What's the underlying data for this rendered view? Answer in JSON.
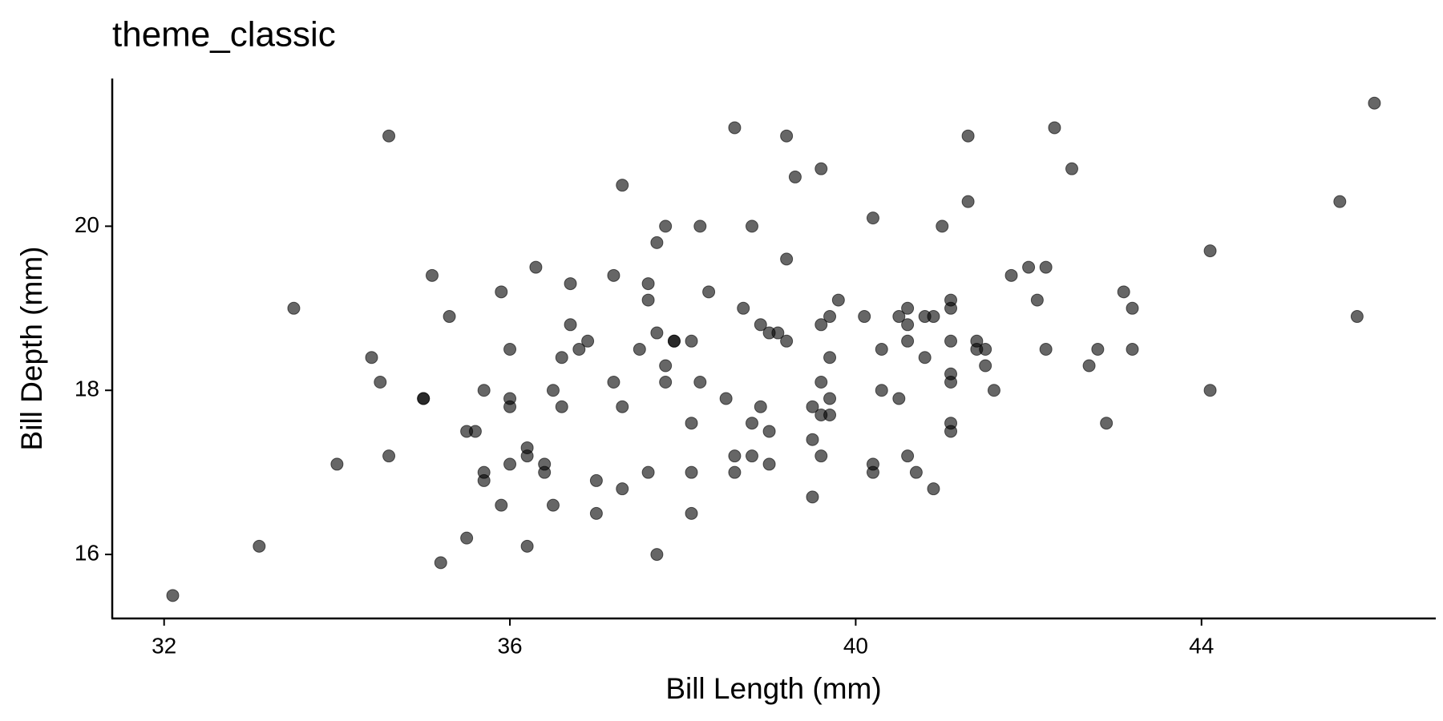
{
  "chart_data": {
    "type": "scatter",
    "title": "theme_classic",
    "x_label": "Bill Length (mm)",
    "y_label": "Bill Depth (mm)",
    "color": "#000000",
    "opacity": 0.6,
    "x": [
      32.1,
      33.1,
      33.5,
      34.0,
      34.4,
      34.5,
      34.6,
      34.6,
      35.0,
      35.0,
      35.1,
      35.2,
      35.3,
      35.5,
      35.5,
      35.6,
      35.7,
      35.7,
      35.7,
      35.9,
      35.9,
      36.0,
      36.0,
      36.0,
      36.0,
      36.2,
      36.2,
      36.2,
      36.3,
      36.4,
      36.4,
      36.5,
      36.5,
      36.6,
      36.6,
      36.7,
      36.7,
      36.8,
      36.9,
      37.0,
      37.0,
      37.2,
      37.2,
      37.3,
      37.3,
      37.3,
      37.5,
      37.6,
      37.6,
      37.6,
      37.7,
      37.7,
      37.7,
      37.8,
      37.8,
      37.8,
      37.9,
      37.9,
      38.1,
      38.1,
      38.1,
      38.1,
      38.2,
      38.2,
      38.3,
      38.5,
      38.6,
      38.6,
      38.6,
      38.7,
      38.8,
      38.8,
      38.8,
      38.9,
      38.9,
      39.0,
      39.0,
      39.0,
      39.1,
      39.2,
      39.2,
      39.2,
      39.3,
      39.5,
      39.5,
      39.5,
      39.6,
      39.6,
      39.6,
      39.6,
      39.6,
      39.7,
      39.7,
      39.7,
      39.7,
      39.8,
      40.1,
      40.2,
      40.2,
      40.2,
      40.3,
      40.3,
      40.5,
      40.5,
      40.6,
      40.6,
      40.6,
      40.6,
      40.7,
      40.8,
      40.8,
      40.9,
      40.9,
      41.0,
      41.1,
      41.1,
      41.1,
      41.1,
      41.1,
      41.1,
      41.1,
      41.3,
      41.3,
      41.4,
      41.4,
      41.5,
      41.5,
      41.6,
      41.8,
      42.0,
      42.1,
      42.2,
      42.2,
      42.3,
      42.5,
      42.7,
      42.8,
      42.9,
      43.1,
      43.2,
      43.2,
      44.1,
      44.1,
      45.6,
      45.8,
      46.0
    ],
    "values": [
      15.5,
      16.1,
      19.0,
      17.1,
      18.4,
      18.1,
      21.1,
      17.2,
      17.9,
      17.9,
      19.4,
      15.9,
      18.9,
      17.5,
      16.2,
      17.5,
      18.0,
      17.0,
      16.9,
      19.2,
      16.6,
      18.5,
      17.9,
      17.8,
      17.1,
      17.3,
      17.2,
      16.1,
      19.5,
      17.1,
      17.0,
      18.0,
      16.6,
      18.4,
      17.8,
      19.3,
      18.8,
      18.5,
      18.6,
      16.9,
      16.5,
      19.4,
      18.1,
      20.5,
      17.8,
      16.8,
      18.5,
      19.3,
      19.1,
      17.0,
      19.8,
      18.7,
      16.0,
      20.0,
      18.3,
      18.1,
      18.6,
      18.6,
      18.6,
      17.6,
      17.0,
      16.5,
      20.0,
      18.1,
      19.2,
      17.9,
      21.2,
      17.2,
      17.0,
      19.0,
      20.0,
      17.6,
      17.2,
      18.8,
      17.8,
      18.7,
      17.5,
      17.1,
      18.7,
      21.1,
      19.6,
      18.6,
      20.6,
      17.8,
      17.4,
      16.7,
      20.7,
      18.8,
      18.1,
      17.7,
      17.2,
      18.9,
      18.4,
      17.9,
      17.7,
      19.1,
      18.9,
      20.1,
      17.1,
      17.0,
      18.5,
      18.0,
      18.9,
      17.9,
      19.0,
      18.8,
      18.6,
      17.2,
      17.0,
      18.9,
      18.4,
      18.9,
      16.8,
      20.0,
      19.1,
      19.0,
      18.6,
      18.2,
      18.1,
      17.6,
      17.5,
      21.1,
      20.3,
      18.6,
      18.5,
      18.5,
      18.3,
      18.0,
      19.4,
      19.5,
      19.1,
      19.5,
      18.5,
      21.2,
      20.7,
      18.3,
      18.5,
      17.6,
      19.2,
      19.0,
      18.5,
      19.7,
      18.0,
      20.3,
      18.9,
      21.5
    ],
    "xlim": [
      31.4,
      46.71
    ],
    "ylim": [
      15.22,
      21.8
    ],
    "xticks": [
      32,
      36,
      40,
      44
    ],
    "yticks": [
      16,
      18,
      20
    ]
  }
}
